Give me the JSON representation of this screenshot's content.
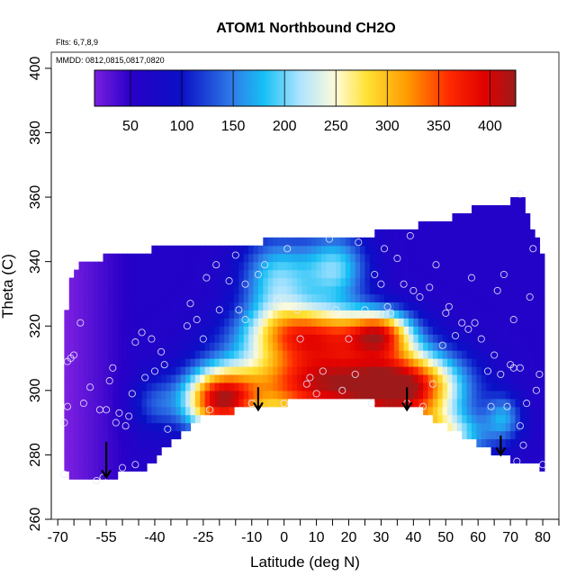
{
  "chart_data": {
    "type": "heatmap",
    "title": "ATOM1 Northbound CH2O",
    "flights_label": "Flts: 6,7,8,9",
    "dates_label": "MMDD: 0812,0815,0817,0820",
    "xlabel": "Latitude (deg N)",
    "ylabel": "Theta (C)",
    "xlim": [
      -72,
      85
    ],
    "ylim": [
      260,
      405
    ],
    "x_ticks": [
      -70,
      -55,
      -40,
      -25,
      -10,
      0,
      10,
      20,
      30,
      40,
      50,
      60,
      70,
      80
    ],
    "x_tick_labels": [
      "-70",
      "-55",
      "-40",
      "-25",
      "-10",
      "0",
      "10",
      "20",
      "30",
      "40",
      "50",
      "60",
      "70",
      "80"
    ],
    "x_minor_ticks": [
      -65,
      -60,
      -50,
      -45,
      -35,
      -30,
      -20,
      -15,
      -5,
      5,
      15,
      25,
      35,
      45,
      55,
      65,
      75,
      85
    ],
    "y_ticks": [
      260,
      280,
      300,
      320,
      340,
      360,
      380,
      400
    ],
    "y_tick_labels": [
      "260",
      "280",
      "300",
      "320",
      "340",
      "360",
      "380",
      "400"
    ],
    "colorbar": {
      "range": [
        15,
        425
      ],
      "ticks": [
        50,
        100,
        150,
        200,
        250,
        300,
        350,
        400
      ],
      "tick_labels": [
        "50",
        "100",
        "150",
        "200",
        "250",
        "300",
        "350",
        "400"
      ],
      "stops": [
        {
          "v": 15,
          "c": "#7a1fe0"
        },
        {
          "v": 50,
          "c": "#2a00c8"
        },
        {
          "v": 100,
          "c": "#0a10c6"
        },
        {
          "v": 150,
          "c": "#2f7ee8"
        },
        {
          "v": 180,
          "c": "#16c0f5"
        },
        {
          "v": 215,
          "c": "#aee4ff"
        },
        {
          "v": 250,
          "c": "#fffbd8"
        },
        {
          "v": 280,
          "c": "#ffe234"
        },
        {
          "v": 320,
          "c": "#ff9900"
        },
        {
          "v": 360,
          "c": "#ff2a00"
        },
        {
          "v": 395,
          "c": "#e00000"
        },
        {
          "v": 425,
          "c": "#9e1a1a"
        }
      ]
    },
    "field": {
      "top_boundary": [
        [
          -68,
          309
        ],
        [
          -67,
          330
        ],
        [
          -65,
          338
        ],
        [
          -62,
          340
        ],
        [
          -58,
          341
        ],
        [
          -50,
          342
        ],
        [
          -40,
          344
        ],
        [
          -30,
          345
        ],
        [
          -20,
          345
        ],
        [
          -10,
          345
        ],
        [
          0,
          348
        ],
        [
          10,
          348
        ],
        [
          20,
          347
        ],
        [
          30,
          349
        ],
        [
          40,
          351
        ],
        [
          50,
          353
        ],
        [
          60,
          357
        ],
        [
          68,
          358
        ],
        [
          71,
          359
        ],
        [
          73,
          362
        ],
        [
          80,
          341
        ],
        [
          80,
          318
        ]
      ],
      "bottom_boundary": [
        [
          -68,
          274
        ],
        [
          -60,
          272
        ],
        [
          -50,
          274
        ],
        [
          -43,
          276
        ],
        [
          -35,
          284
        ],
        [
          -25,
          292
        ],
        [
          -15,
          294
        ],
        [
          -5,
          295
        ],
        [
          5,
          297
        ],
        [
          11,
          298
        ],
        [
          20,
          297
        ],
        [
          30,
          296
        ],
        [
          40,
          296
        ],
        [
          45,
          292
        ],
        [
          50,
          289
        ],
        [
          58,
          285
        ],
        [
          65,
          281
        ],
        [
          72,
          278
        ],
        [
          80,
          276
        ]
      ],
      "peaks": [
        {
          "lat": 10,
          "theta": 302,
          "value": 385,
          "sx": 17,
          "sy": 9
        },
        {
          "lat": -20,
          "theta": 297,
          "value": 360,
          "sx": 8,
          "sy": 7
        },
        {
          "lat": 38,
          "theta": 301,
          "value": 365,
          "sx": 12,
          "sy": 8
        },
        {
          "lat": 8,
          "theta": 318,
          "value": 290,
          "sx": 14,
          "sy": 6
        },
        {
          "lat": 30,
          "theta": 318,
          "value": 280,
          "sx": 7,
          "sy": 5
        },
        {
          "lat": -2,
          "theta": 334,
          "value": 200,
          "sx": 8,
          "sy": 10
        },
        {
          "lat": 16,
          "theta": 338,
          "value": 195,
          "sx": 7,
          "sy": 8
        },
        {
          "lat": 45,
          "theta": 286,
          "value": 250,
          "sx": 12,
          "sy": 5
        },
        {
          "lat": 68,
          "theta": 292,
          "value": 150,
          "sx": 4,
          "sy": 5
        },
        {
          "lat": -40,
          "theta": 296,
          "value": 120,
          "sx": 5,
          "sy": 6
        }
      ],
      "background_value": 60,
      "west_value": 15
    },
    "obs_points": [
      {
        "lat": -67,
        "theta": 309
      },
      {
        "lat": -66,
        "theta": 310
      },
      {
        "lat": -65,
        "theta": 311
      },
      {
        "lat": -63,
        "theta": 321
      },
      {
        "lat": -67,
        "theta": 295
      },
      {
        "lat": -68,
        "theta": 290
      },
      {
        "lat": -60,
        "theta": 301
      },
      {
        "lat": -62,
        "theta": 296
      },
      {
        "lat": -57,
        "theta": 294
      },
      {
        "lat": -55,
        "theta": 294
      },
      {
        "lat": -54,
        "theta": 303
      },
      {
        "lat": -53,
        "theta": 307
      },
      {
        "lat": -52,
        "theta": 290
      },
      {
        "lat": -51,
        "theta": 293
      },
      {
        "lat": -49,
        "theta": 289
      },
      {
        "lat": -47,
        "theta": 299
      },
      {
        "lat": -46,
        "theta": 315
      },
      {
        "lat": -44,
        "theta": 318
      },
      {
        "lat": -43,
        "theta": 304
      },
      {
        "lat": -41,
        "theta": 316
      },
      {
        "lat": -40,
        "theta": 306
      },
      {
        "lat": -38,
        "theta": 312
      },
      {
        "lat": -36,
        "theta": 288
      },
      {
        "lat": -37,
        "theta": 308
      },
      {
        "lat": -48,
        "theta": 292
      },
      {
        "lat": -46,
        "theta": 277
      },
      {
        "lat": -50,
        "theta": 276
      },
      {
        "lat": -56,
        "theta": 273
      },
      {
        "lat": -58,
        "theta": 272
      },
      {
        "lat": -68,
        "theta": 274
      },
      {
        "lat": -30,
        "theta": 320
      },
      {
        "lat": -29,
        "theta": 327
      },
      {
        "lat": -27,
        "theta": 322
      },
      {
        "lat": -25,
        "theta": 316
      },
      {
        "lat": -24,
        "theta": 335
      },
      {
        "lat": -23,
        "theta": 294
      },
      {
        "lat": -21,
        "theta": 339
      },
      {
        "lat": -20,
        "theta": 325
      },
      {
        "lat": -17,
        "theta": 334
      },
      {
        "lat": -15,
        "theta": 342
      },
      {
        "lat": -14,
        "theta": 325
      },
      {
        "lat": -12,
        "theta": 333
      },
      {
        "lat": -12,
        "theta": 322
      },
      {
        "lat": -10,
        "theta": 296
      },
      {
        "lat": -8,
        "theta": 336
      },
      {
        "lat": -6,
        "theta": 339
      },
      {
        "lat": -2,
        "theta": 328
      },
      {
        "lat": 0,
        "theta": 296
      },
      {
        "lat": 1,
        "theta": 344
      },
      {
        "lat": 4,
        "theta": 325
      },
      {
        "lat": 5,
        "theta": 316
      },
      {
        "lat": 7,
        "theta": 302
      },
      {
        "lat": 8,
        "theta": 304
      },
      {
        "lat": 10,
        "theta": 299
      },
      {
        "lat": 12,
        "theta": 306
      },
      {
        "lat": 14,
        "theta": 347
      },
      {
        "lat": 16,
        "theta": 325
      },
      {
        "lat": 18,
        "theta": 300
      },
      {
        "lat": 20,
        "theta": 316
      },
      {
        "lat": 22,
        "theta": 305
      },
      {
        "lat": 23,
        "theta": 346
      },
      {
        "lat": 25,
        "theta": 325
      },
      {
        "lat": 27,
        "theta": 296
      },
      {
        "lat": 28,
        "theta": 336
      },
      {
        "lat": 30,
        "theta": 333
      },
      {
        "lat": 31,
        "theta": 344
      },
      {
        "lat": 32,
        "theta": 326
      },
      {
        "lat": 33,
        "theta": 324
      },
      {
        "lat": 35,
        "theta": 341
      },
      {
        "lat": 37,
        "theta": 333
      },
      {
        "lat": 38,
        "theta": 296
      },
      {
        "lat": 39,
        "theta": 348
      },
      {
        "lat": 40,
        "theta": 331
      },
      {
        "lat": 42,
        "theta": 329
      },
      {
        "lat": 43,
        "theta": 295
      },
      {
        "lat": 45,
        "theta": 332
      },
      {
        "lat": 46,
        "theta": 302
      },
      {
        "lat": 47,
        "theta": 339
      },
      {
        "lat": 49,
        "theta": 314
      },
      {
        "lat": 50,
        "theta": 324
      },
      {
        "lat": 51,
        "theta": 326
      },
      {
        "lat": 53,
        "theta": 317
      },
      {
        "lat": 55,
        "theta": 321
      },
      {
        "lat": 57,
        "theta": 319
      },
      {
        "lat": 58,
        "theta": 335
      },
      {
        "lat": 59,
        "theta": 321
      },
      {
        "lat": 61,
        "theta": 316
      },
      {
        "lat": 63,
        "theta": 306
      },
      {
        "lat": 64,
        "theta": 295
      },
      {
        "lat": 65,
        "theta": 311
      },
      {
        "lat": 66,
        "theta": 331
      },
      {
        "lat": 67,
        "theta": 305
      },
      {
        "lat": 68,
        "theta": 336
      },
      {
        "lat": 69,
        "theta": 295
      },
      {
        "lat": 70,
        "theta": 308
      },
      {
        "lat": 71,
        "theta": 307
      },
      {
        "lat": 71,
        "theta": 322
      },
      {
        "lat": 72,
        "theta": 278
      },
      {
        "lat": 73,
        "theta": 289
      },
      {
        "lat": 73,
        "theta": 307
      },
      {
        "lat": 74,
        "theta": 283
      },
      {
        "lat": 75,
        "theta": 296
      },
      {
        "lat": 76,
        "theta": 329
      },
      {
        "lat": 77,
        "theta": 344
      },
      {
        "lat": 78,
        "theta": 300
      },
      {
        "lat": 79,
        "theta": 305
      },
      {
        "lat": 80,
        "theta": 277
      },
      {
        "lat": 73,
        "theta": 361
      }
    ],
    "arrows": [
      {
        "lat": -55,
        "theta_top": 284,
        "theta_tip": 273
      },
      {
        "lat": -8,
        "theta_top": 301,
        "theta_tip": 294
      },
      {
        "lat": 38,
        "theta_top": 301,
        "theta_tip": 294
      },
      {
        "lat": 67,
        "theta_top": 286,
        "theta_tip": 280
      }
    ]
  }
}
